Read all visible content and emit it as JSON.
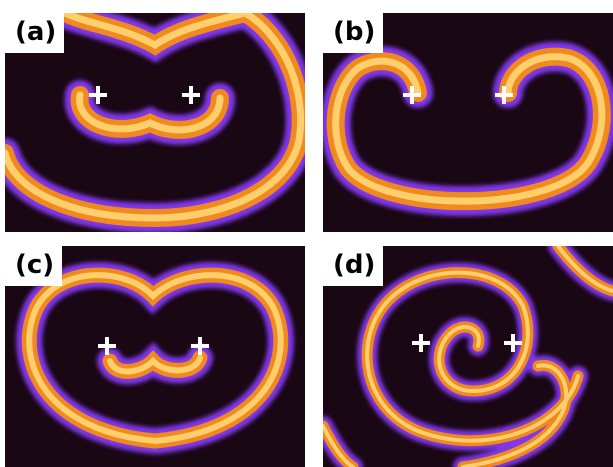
{
  "panels": [
    {
      "label": "(a)"
    },
    {
      "label": "(b)"
    },
    {
      "label": "(c)"
    },
    {
      "label": "(d)"
    }
  ],
  "colors": {
    "background": "#1a0714",
    "wave_core": "#ffcf6e",
    "wave_mid": "#f08a1e",
    "wave_edge": "#8a3dff",
    "marker": "#ffffff"
  },
  "marker_icon": "plus-icon"
}
